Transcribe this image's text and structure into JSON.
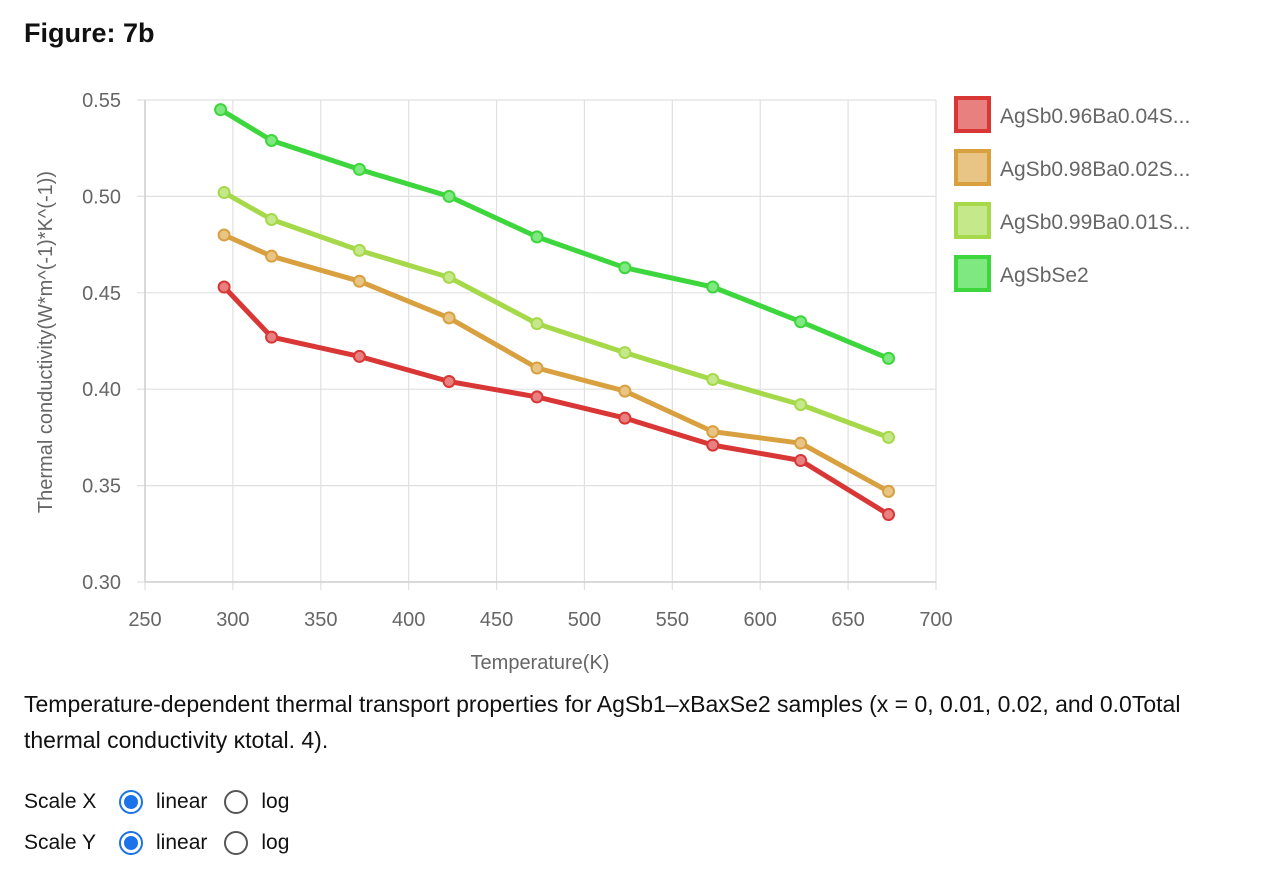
{
  "figure_title": "Figure: 7b",
  "caption": "Temperature-dependent thermal transport properties for AgSb1–xBaxSe2 samples (x = 0, 0.01, 0.02, and 0.0Total thermal conductivity κtotal. 4).",
  "controls": {
    "scale_x": {
      "label": "Scale X",
      "options": [
        "linear",
        "log"
      ],
      "selected": "linear"
    },
    "scale_y": {
      "label": "Scale Y",
      "options": [
        "linear",
        "log"
      ],
      "selected": "linear"
    }
  },
  "chart_data": {
    "type": "line",
    "title": "",
    "xlabel": "Temperature(K)",
    "ylabel": "Thermal conductivity(W*m^(-1)*K^(-1))",
    "xlim": [
      250,
      700
    ],
    "ylim": [
      0.3,
      0.55
    ],
    "x_ticks": [
      "250",
      "300",
      "350",
      "400",
      "450",
      "500",
      "550",
      "600",
      "650",
      "700"
    ],
    "y_ticks": [
      "0.55",
      "0.50",
      "0.45",
      "0.40",
      "0.35",
      "0.30"
    ],
    "grid": true,
    "legend_position": "right",
    "series": [
      {
        "name": "AgSb0.96Ba0.04S...",
        "color": "#d93636",
        "fill": "#e88080",
        "x": [
          295,
          322,
          372,
          423,
          473,
          523,
          573,
          623,
          673
        ],
        "y": [
          0.453,
          0.427,
          0.417,
          0.404,
          0.396,
          0.385,
          0.371,
          0.363,
          0.335
        ]
      },
      {
        "name": "AgSb0.98Ba0.02S...",
        "color": "#d9a040",
        "fill": "#e8c585",
        "x": [
          295,
          322,
          372,
          423,
          473,
          523,
          573,
          623,
          673
        ],
        "y": [
          0.48,
          0.469,
          0.456,
          0.437,
          0.411,
          0.399,
          0.378,
          0.372,
          0.347
        ]
      },
      {
        "name": "AgSb0.99Ba0.01S...",
        "color": "#a5d94a",
        "fill": "#c5e88a",
        "x": [
          295,
          322,
          372,
          423,
          473,
          523,
          573,
          623,
          673
        ],
        "y": [
          0.502,
          0.488,
          0.472,
          0.458,
          0.434,
          0.419,
          0.405,
          0.392,
          0.375
        ]
      },
      {
        "name": "AgSbSe2",
        "color": "#3dd63d",
        "fill": "#80e880",
        "x": [
          293,
          322,
          372,
          423,
          473,
          523,
          573,
          623,
          673
        ],
        "y": [
          0.545,
          0.529,
          0.514,
          0.5,
          0.479,
          0.463,
          0.453,
          0.435,
          0.416
        ]
      }
    ]
  }
}
